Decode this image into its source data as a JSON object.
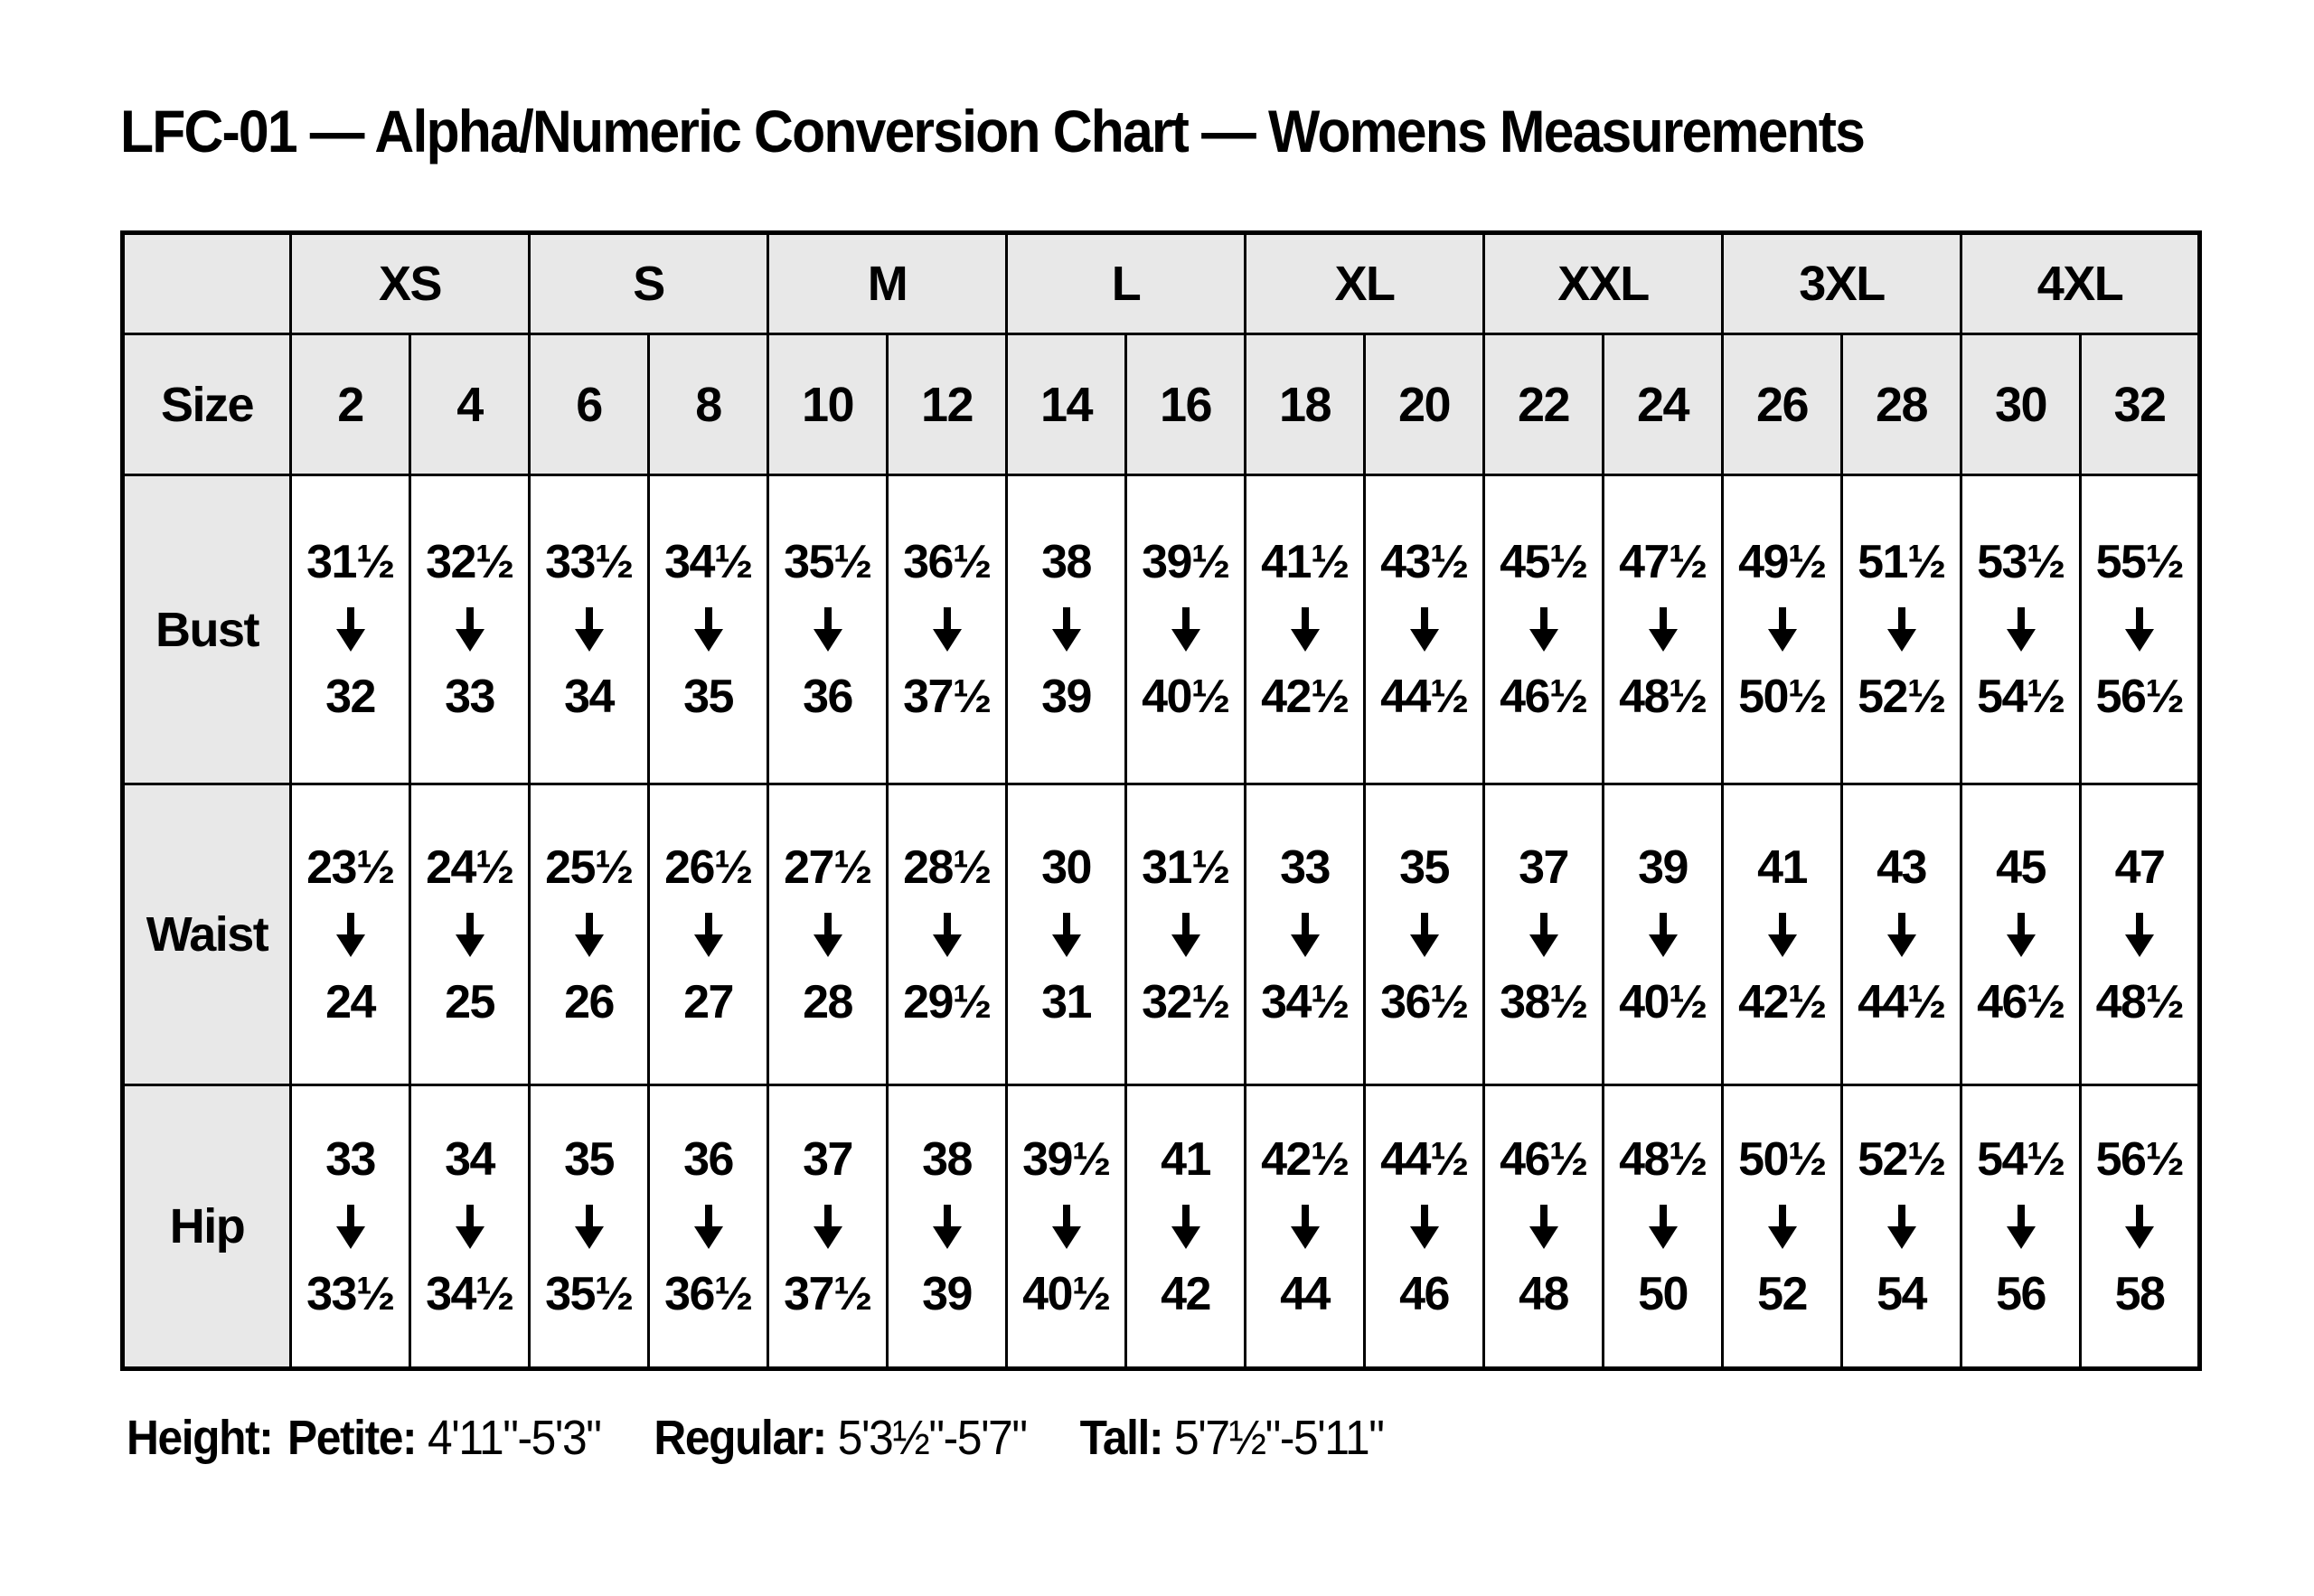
{
  "chart_data": {
    "type": "table",
    "title": "LFC-01 — Alpha/Numeric Conversion Chart — Womens Measurements",
    "corner_label": "",
    "size_row_label": "Size",
    "alpha_sizes": [
      "XS",
      "S",
      "M",
      "L",
      "XL",
      "XXL",
      "3XL",
      "4XL"
    ],
    "numeric_sizes": [
      "2",
      "4",
      "6",
      "8",
      "10",
      "12",
      "14",
      "16",
      "18",
      "20",
      "22",
      "24",
      "26",
      "28",
      "30",
      "32"
    ],
    "rows": [
      {
        "label": "Bust",
        "cells": [
          {
            "from": "31½",
            "to": "32"
          },
          {
            "from": "32½",
            "to": "33"
          },
          {
            "from": "33½",
            "to": "34"
          },
          {
            "from": "34½",
            "to": "35"
          },
          {
            "from": "35½",
            "to": "36"
          },
          {
            "from": "36½",
            "to": "37½"
          },
          {
            "from": "38",
            "to": "39"
          },
          {
            "from": "39½",
            "to": "40½"
          },
          {
            "from": "41½",
            "to": "42½"
          },
          {
            "from": "43½",
            "to": "44½"
          },
          {
            "from": "45½",
            "to": "46½"
          },
          {
            "from": "47½",
            "to": "48½"
          },
          {
            "from": "49½",
            "to": "50½"
          },
          {
            "from": "51½",
            "to": "52½"
          },
          {
            "from": "53½",
            "to": "54½"
          },
          {
            "from": "55½",
            "to": "56½"
          }
        ]
      },
      {
        "label": "Waist",
        "cells": [
          {
            "from": "23½",
            "to": "24"
          },
          {
            "from": "24½",
            "to": "25"
          },
          {
            "from": "25½",
            "to": "26"
          },
          {
            "from": "26½",
            "to": "27"
          },
          {
            "from": "27½",
            "to": "28"
          },
          {
            "from": "28½",
            "to": "29½"
          },
          {
            "from": "30",
            "to": "31"
          },
          {
            "from": "31½",
            "to": "32½"
          },
          {
            "from": "33",
            "to": "34½"
          },
          {
            "from": "35",
            "to": "36½"
          },
          {
            "from": "37",
            "to": "38½"
          },
          {
            "from": "39",
            "to": "40½"
          },
          {
            "from": "41",
            "to": "42½"
          },
          {
            "from": "43",
            "to": "44½"
          },
          {
            "from": "45",
            "to": "46½"
          },
          {
            "from": "47",
            "to": "48½"
          }
        ]
      },
      {
        "label": "Hip",
        "cells": [
          {
            "from": "33",
            "to": "33½"
          },
          {
            "from": "34",
            "to": "34½"
          },
          {
            "from": "35",
            "to": "35½"
          },
          {
            "from": "36",
            "to": "36½"
          },
          {
            "from": "37",
            "to": "37½"
          },
          {
            "from": "38",
            "to": "39"
          },
          {
            "from": "39½",
            "to": "40½"
          },
          {
            "from": "41",
            "to": "42"
          },
          {
            "from": "42½",
            "to": "44"
          },
          {
            "from": "44½",
            "to": "46"
          },
          {
            "from": "46½",
            "to": "48"
          },
          {
            "from": "48½",
            "to": "50"
          },
          {
            "from": "50½",
            "to": "52"
          },
          {
            "from": "52½",
            "to": "54"
          },
          {
            "from": "54½",
            "to": "56"
          },
          {
            "from": "56½",
            "to": "58"
          }
        ]
      }
    ],
    "footnote": {
      "height_label": "Height:",
      "segments": [
        {
          "label": "Petite:",
          "value": "4'11\"-5'3\""
        },
        {
          "label": "Regular:",
          "value": "5'3½\"-5'7\""
        },
        {
          "label": "Tall:",
          "value": "5'7½\"-5'11\""
        }
      ]
    },
    "layout_hints": {
      "arrow_between_values": "down-arrow",
      "header_rows_shaded": true,
      "label_column_shaded": true
    },
    "colors": {
      "background": "#ffffff",
      "header_fill": "#e8e8e8",
      "border": "#000000",
      "text": "#000000"
    }
  }
}
